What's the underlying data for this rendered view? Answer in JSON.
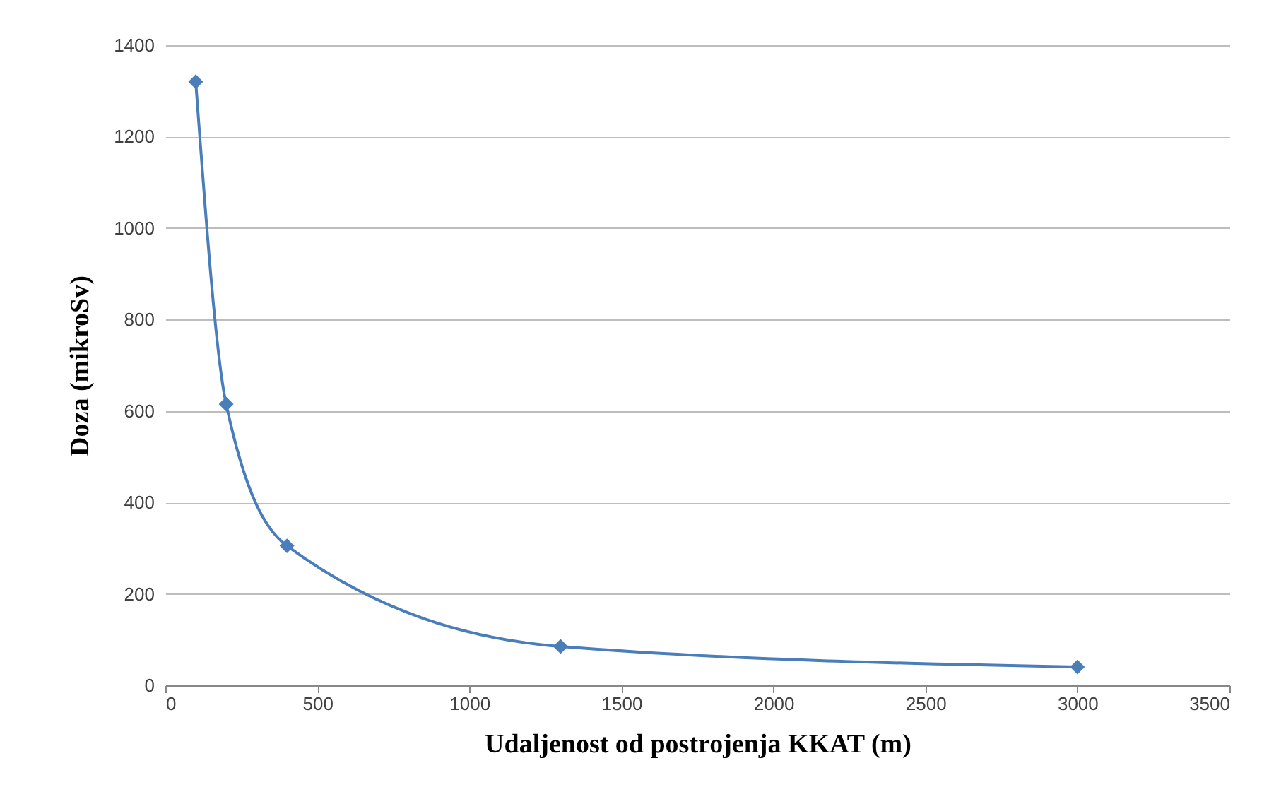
{
  "chart_data": {
    "type": "line",
    "xlabel": "Udaljenost od postrojenja KKAT (m)",
    "ylabel": "Doza (mikroSv)",
    "x": [
      100,
      200,
      400,
      1300,
      3000
    ],
    "series": [
      {
        "color": "#4a7ebb",
        "values": [
          1320,
          615,
          305,
          85,
          40
        ]
      }
    ],
    "xlim": [
      0,
      3500
    ],
    "xticks": [
      0,
      500,
      1000,
      1500,
      2000,
      2500,
      3000,
      3500
    ],
    "ylim": [
      0,
      1400
    ],
    "yticks": [
      0,
      200,
      400,
      600,
      800,
      1000,
      1200,
      1400
    ],
    "grid": "y",
    "legend": false,
    "marker": "diamond",
    "line_style": "solid"
  }
}
